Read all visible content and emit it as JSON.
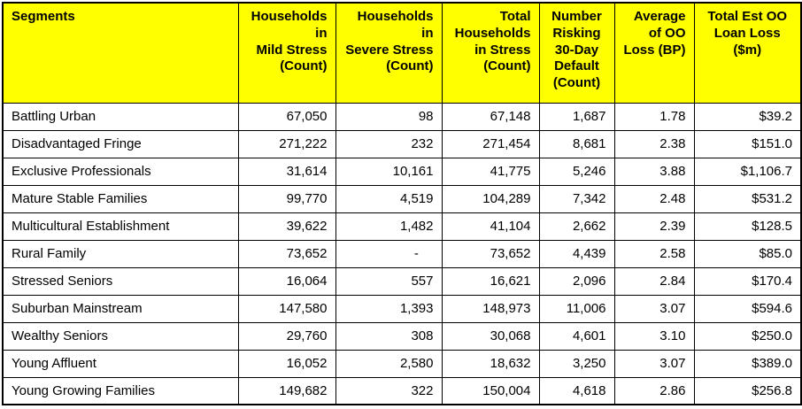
{
  "colors": {
    "header_background": "#FFFF00",
    "header_text": "#000000",
    "body_background": "#FFFFFF",
    "grid_border": "#000000"
  },
  "table": {
    "columns": [
      {
        "id": "segments",
        "label": "Segments",
        "align": "left"
      },
      {
        "id": "households-mild-stress",
        "label": "Households in\nMild Stress\n(Count)",
        "align": "right"
      },
      {
        "id": "households-severe-stress",
        "label": "Households in\nSevere Stress\n(Count)",
        "align": "right"
      },
      {
        "id": "total-households-in-stress",
        "label": "Total\nHouseholds\nin Stress\n(Count)",
        "align": "right"
      },
      {
        "id": "number-risking-30-day-default",
        "label": "Number\nRisking\n30-Day\nDefault\n(Count)",
        "align": "center",
        "data_align": "right"
      },
      {
        "id": "average-oo-loss-bp",
        "label": "Average\nof OO\nLoss (BP)",
        "align": "right"
      },
      {
        "id": "total-est-oo-loan-loss",
        "label": "Total Est OO\nLoan Loss ($m)",
        "align": "center",
        "data_align": "right"
      }
    ],
    "rows": [
      [
        "Battling Urban",
        "67,050",
        "98",
        "67,148",
        "1,687",
        "1.78",
        "$39.2"
      ],
      [
        "Disadvantaged Fringe",
        "271,222",
        "232",
        "271,454",
        "8,681",
        "2.38",
        "$151.0"
      ],
      [
        "Exclusive Professionals",
        "31,614",
        "10,161",
        "41,775",
        "5,246",
        "3.88",
        "$1,106.7"
      ],
      [
        "Mature Stable Families",
        "99,770",
        "4,519",
        "104,289",
        "7,342",
        "2.48",
        "$531.2"
      ],
      [
        "Multicultural Establishment",
        "39,622",
        "1,482",
        "41,104",
        "2,662",
        "2.39",
        "$128.5"
      ],
      [
        "Rural Family",
        "73,652",
        "-    ",
        "73,652",
        "4,439",
        "2.58",
        "$85.0"
      ],
      [
        "Stressed Seniors",
        "16,064",
        "557",
        "16,621",
        "2,096",
        "2.84",
        "$170.4"
      ],
      [
        "Suburban Mainstream",
        "147,580",
        "1,393",
        "148,973",
        "11,006",
        "3.07",
        "$594.6"
      ],
      [
        "Wealthy Seniors",
        "29,760",
        "308",
        "30,068",
        "4,601",
        "3.10",
        "$250.0"
      ],
      [
        "Young Affluent",
        "16,052",
        "2,580",
        "18,632",
        "3,250",
        "3.07",
        "$389.0"
      ],
      [
        "Young Growing Families",
        "149,682",
        "322",
        "150,004",
        "4,618",
        "2.86",
        "$256.8"
      ]
    ]
  }
}
